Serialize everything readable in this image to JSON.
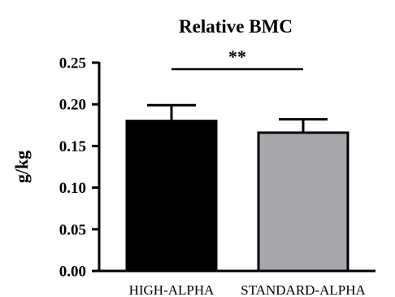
{
  "chart_data": {
    "type": "bar",
    "title": "Relative BMC",
    "xlabel": "",
    "ylabel": "g/kg",
    "ylim": [
      0,
      0.25
    ],
    "yticks": [
      "0.00",
      "0.05",
      "0.10",
      "0.15",
      "0.20",
      "0.25"
    ],
    "grid": false,
    "categories": [
      "HIGH-ALPHA",
      "STANDARD-ALPHA"
    ],
    "values": [
      0.18,
      0.166
    ],
    "errors": [
      0.019,
      0.016
    ],
    "bar_colors": [
      "#000000",
      "#a6a6ab"
    ],
    "significance": {
      "label": "**",
      "between": [
        "HIGH-ALPHA",
        "STANDARD-ALPHA"
      ]
    }
  }
}
